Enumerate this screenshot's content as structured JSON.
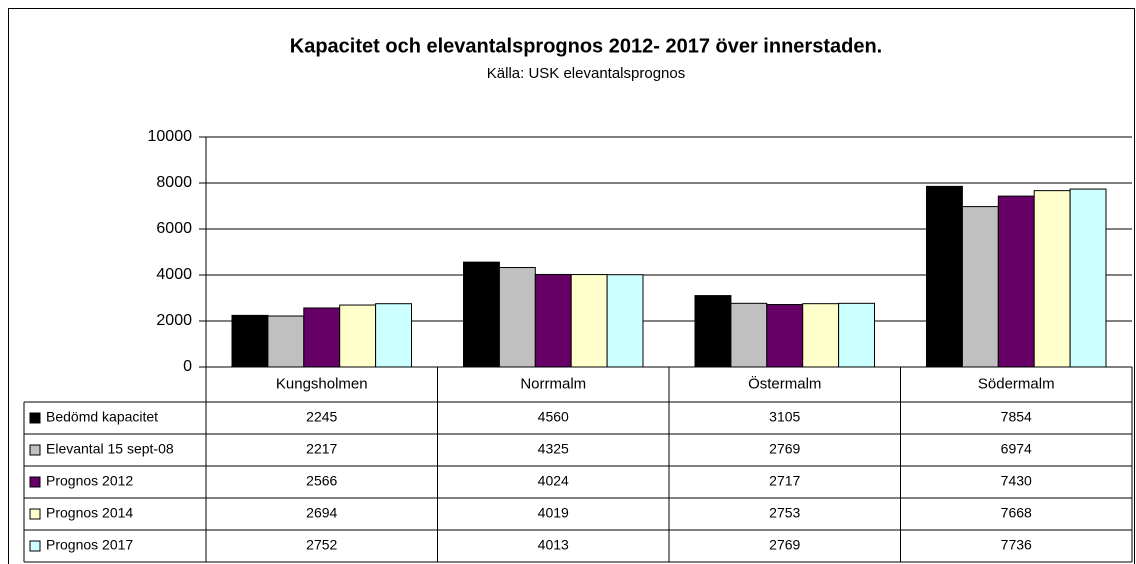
{
  "chart_data": {
    "type": "bar",
    "title": "Kapacitet och elevantalsprognos 2012- 2017 över  innerstaden.",
    "subtitle": "Källa: USK elevantalsprognos",
    "categories": [
      "Kungsholmen",
      "Norrmalm",
      "Östermalm",
      "Södermalm"
    ],
    "series": [
      {
        "name": "Bedömd kapacitet",
        "color": "#000000",
        "values": [
          2245,
          4560,
          3105,
          7854
        ]
      },
      {
        "name": "Elevantal 15 sept-08",
        "color": "#c0c0c0",
        "values": [
          2217,
          4325,
          2769,
          6974
        ]
      },
      {
        "name": "Prognos 2012",
        "color": "#660066",
        "values": [
          2566,
          4024,
          2717,
          7430
        ]
      },
      {
        "name": "Prognos 2014",
        "color": "#ffffcc",
        "values": [
          2694,
          4019,
          2753,
          7668
        ]
      },
      {
        "name": "Prognos 2017",
        "color": "#ccffff",
        "values": [
          2752,
          4013,
          2769,
          7736
        ]
      }
    ],
    "ylim": [
      0,
      10000
    ],
    "yticks": [
      0,
      2000,
      4000,
      6000,
      8000,
      10000
    ],
    "grid": true
  }
}
